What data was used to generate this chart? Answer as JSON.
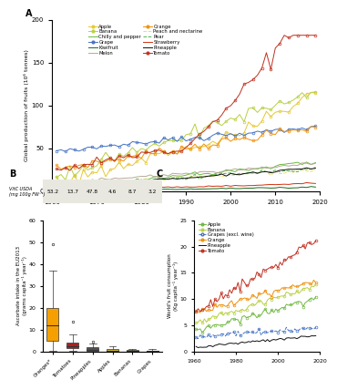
{
  "panel_A": {
    "title": "A",
    "ylabel": "Global production of fruits (10⁶ tonnes)",
    "xlim": [
      1960,
      2020
    ],
    "ylim": [
      0,
      200
    ],
    "yticks": [
      0,
      50,
      100,
      150,
      200
    ],
    "xticks": [
      1960,
      1970,
      1980,
      1990,
      2000,
      2010,
      2020
    ],
    "series": {
      "Apple": {
        "color": "#e8c830",
        "marker": "o",
        "linestyle": "-",
        "ms": 2.0
      },
      "Banana": {
        "color": "#b8d040",
        "marker": "o",
        "linestyle": "-",
        "ms": 2.0
      },
      "Chilly and pepper": {
        "color": "#70b840",
        "marker": null,
        "linestyle": "-",
        "ms": 0
      },
      "Grape": {
        "color": "#4472c4",
        "marker": "o",
        "linestyle": "-",
        "ms": 2.0
      },
      "Kiwifruit": {
        "color": "#1a6b1a",
        "marker": null,
        "linestyle": "-",
        "ms": 0
      },
      "Melon": {
        "color": "#b8a898",
        "marker": null,
        "linestyle": "-",
        "ms": 0
      },
      "Orange": {
        "color": "#f0900a",
        "marker": "o",
        "linestyle": "-",
        "ms": 2.0
      },
      "Peach and nectarine": {
        "color": "#e8e060",
        "marker": null,
        "linestyle": "--",
        "ms": 0
      },
      "Pear": {
        "color": "#50b050",
        "marker": null,
        "linestyle": "--",
        "ms": 0
      },
      "Strawberry": {
        "color": "#d03010",
        "marker": null,
        "linestyle": "-",
        "ms": 0
      },
      "Pineapple": {
        "color": "#101010",
        "marker": null,
        "linestyle": "-",
        "ms": 0
      },
      "Tomato": {
        "color": "#c03020",
        "marker": "o",
        "linestyle": "-",
        "ms": 2.0
      }
    }
  },
  "panel_B": {
    "title": "B",
    "ylabel": "Ascorbate intake in the EU2013\n(grams capita⁻¹ year⁻¹)",
    "vitc_label": "VitC USDA\n(mg 100g FW⁻¹)",
    "vitc_values": [
      53.2,
      13.7,
      47.8,
      4.6,
      8.7,
      3.2
    ],
    "categories": [
      "Oranges*",
      "Tomatoes",
      "Pineapples",
      "Apples",
      "Bananas",
      "Grapes"
    ],
    "ylim": [
      0,
      60
    ],
    "yticks": [
      0,
      10,
      20,
      30,
      40,
      50,
      60
    ],
    "boxes": {
      "Oranges*": {
        "q1": 5.0,
        "median": 12.0,
        "q3": 20.0,
        "wlo": 0.5,
        "whi": 37.0,
        "outliers": [
          49.0
        ],
        "fc": "#f5a000",
        "ec": "#8B4500"
      },
      "Tomatoes": {
        "q1": 1.5,
        "median": 2.5,
        "q3": 4.0,
        "wlo": 0.2,
        "whi": 8.0,
        "outliers": [
          13.5
        ],
        "fc": "#b02020",
        "ec": "#600000"
      },
      "Pineapples": {
        "q1": 0.4,
        "median": 0.9,
        "q3": 1.8,
        "wlo": 0.05,
        "whi": 3.5,
        "outliers": [
          4.5
        ],
        "fc": "#505050",
        "ec": "#202020"
      },
      "Apples": {
        "q1": 0.3,
        "median": 0.5,
        "q3": 1.0,
        "wlo": 0.02,
        "whi": 2.5,
        "outliers": [],
        "fc": "#d0b820",
        "ec": "#806000"
      },
      "Bananas": {
        "q1": 0.15,
        "median": 0.35,
        "q3": 0.7,
        "wlo": 0.02,
        "whi": 1.3,
        "outliers": [],
        "fc": "#a0b030",
        "ec": "#506000"
      },
      "Grapes": {
        "q1": 0.1,
        "median": 0.25,
        "q3": 0.5,
        "wlo": 0.01,
        "whi": 1.0,
        "outliers": [],
        "fc": "#3060b0",
        "ec": "#102060"
      }
    }
  },
  "panel_C": {
    "title": "C",
    "ylabel": "World's fruit consumption\n(Kg capita⁻¹ year⁻¹)",
    "xlim": [
      1960,
      2020
    ],
    "ylim": [
      0,
      25
    ],
    "yticks": [
      0,
      5,
      10,
      15,
      20,
      25
    ],
    "xticks": [
      1960,
      1980,
      2000,
      2020
    ],
    "series": {
      "Apple": {
        "color": "#70b840",
        "marker": "o",
        "linestyle": "-",
        "ms": 2.0
      },
      "Banana": {
        "color": "#b8d040",
        "marker": "o",
        "linestyle": "-",
        "ms": 2.0
      },
      "Grapes (excl. wine)": {
        "color": "#4472c4",
        "marker": "o",
        "linestyle": "--",
        "ms": 2.0
      },
      "Orange": {
        "color": "#f0900a",
        "marker": "o",
        "linestyle": "-",
        "ms": 2.0
      },
      "Pineapple": {
        "color": "#101010",
        "marker": null,
        "linestyle": "-",
        "ms": 0
      },
      "Tomato": {
        "color": "#c03020",
        "marker": "o",
        "linestyle": "-",
        "ms": 2.0
      }
    }
  }
}
